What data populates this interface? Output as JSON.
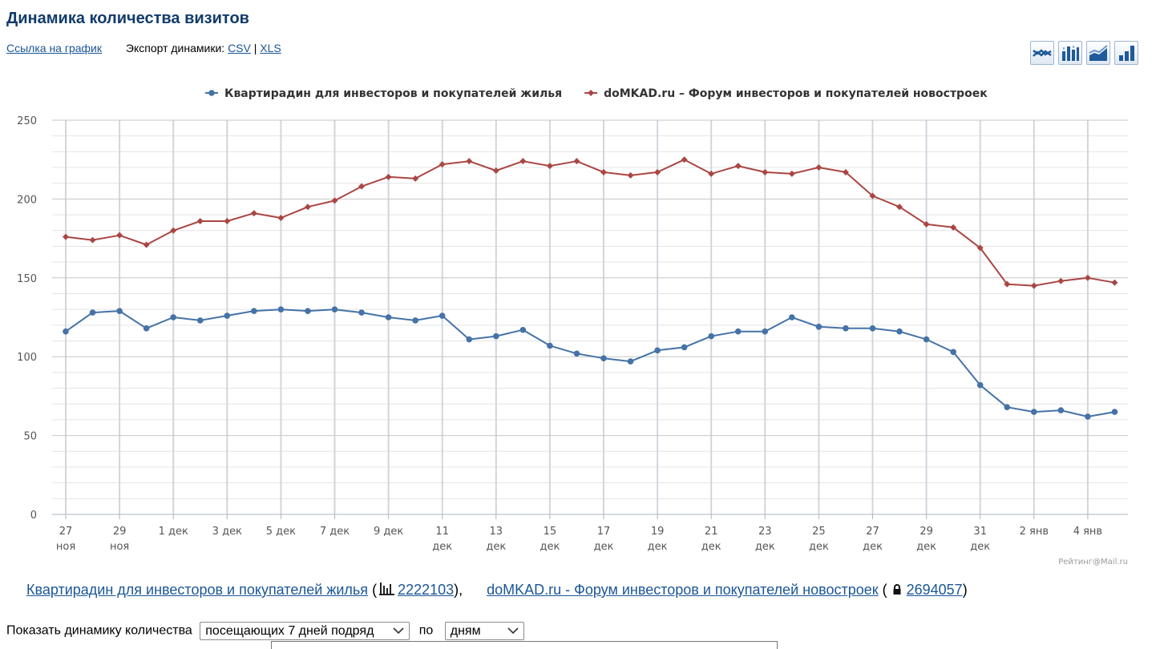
{
  "page": {
    "title": "Динамика количества визитов",
    "chart_link": "Ссылка на график",
    "export_label": "Экспорт динамики:",
    "export_csv": "CSV",
    "export_sep": "|",
    "export_xls": "XLS",
    "chart_type_icons": [
      "line-chart-icon",
      "bar-chart-icon",
      "area-chart-icon",
      "column-chart-icon"
    ]
  },
  "chart_data": {
    "type": "line",
    "title": "",
    "xlabel": "",
    "ylabel": "",
    "ylim": [
      0,
      250
    ],
    "yticks": [
      "0",
      "50",
      "100",
      "150",
      "200",
      "250"
    ],
    "grid": true,
    "legend_position": "top-center",
    "x": [
      "27 ноя",
      "28 ноя",
      "29 ноя",
      "30 ноя",
      "1 дек",
      "2 дек",
      "3 дек",
      "4 дек",
      "5 дек",
      "6 дек",
      "7 дек",
      "8 дек",
      "9 дек",
      "10 дек",
      "11 дек",
      "12 дек",
      "13 дек",
      "14 дек",
      "15 дек",
      "16 дек",
      "17 дек",
      "18 дек",
      "19 дек",
      "20 дек",
      "21 дек",
      "22 дек",
      "23 дек",
      "24 дек",
      "25 дек",
      "26 дек",
      "27 дек",
      "28 дек",
      "29 дек",
      "30 дек",
      "31 дек",
      "1 янв",
      "2 янв",
      "3 янв",
      "4 янв",
      "5 янв"
    ],
    "tick_labels": [
      {
        "i": 0,
        "l1": "27",
        "l2": "ноя"
      },
      {
        "i": 2,
        "l1": "29",
        "l2": "ноя"
      },
      {
        "i": 4,
        "l1": "1 дек",
        "l2": ""
      },
      {
        "i": 6,
        "l1": "3 дек",
        "l2": ""
      },
      {
        "i": 8,
        "l1": "5 дек",
        "l2": ""
      },
      {
        "i": 10,
        "l1": "7 дек",
        "l2": ""
      },
      {
        "i": 12,
        "l1": "9 дек",
        "l2": ""
      },
      {
        "i": 14,
        "l1": "11",
        "l2": "дек"
      },
      {
        "i": 16,
        "l1": "13",
        "l2": "дек"
      },
      {
        "i": 18,
        "l1": "15",
        "l2": "дек"
      },
      {
        "i": 20,
        "l1": "17",
        "l2": "дек"
      },
      {
        "i": 22,
        "l1": "19",
        "l2": "дек"
      },
      {
        "i": 24,
        "l1": "21",
        "l2": "дек"
      },
      {
        "i": 26,
        "l1": "23",
        "l2": "дек"
      },
      {
        "i": 28,
        "l1": "25",
        "l2": "дек"
      },
      {
        "i": 30,
        "l1": "27",
        "l2": "дек"
      },
      {
        "i": 32,
        "l1": "29",
        "l2": "дек"
      },
      {
        "i": 34,
        "l1": "31",
        "l2": "дек"
      },
      {
        "i": 36,
        "l1": "2 янв",
        "l2": ""
      },
      {
        "i": 38,
        "l1": "4 янв",
        "l2": ""
      }
    ],
    "series": [
      {
        "name": "Квартирадин для инвесторов и покупателей жилья",
        "color": "#4572a7",
        "marker": "circle",
        "values": [
          116,
          128,
          129,
          118,
          125,
          123,
          126,
          129,
          130,
          129,
          130,
          128,
          125,
          123,
          126,
          111,
          113,
          117,
          107,
          102,
          99,
          97,
          104,
          106,
          113,
          116,
          116,
          125,
          119,
          118,
          118,
          116,
          111,
          103,
          82,
          68,
          65,
          66,
          62,
          65
        ]
      },
      {
        "name": "doMKAD.ru – Форум инвесторов и покупателей новостроек",
        "color": "#aa4643",
        "marker": "diamond",
        "values": [
          176,
          174,
          177,
          171,
          180,
          186,
          186,
          191,
          188,
          195,
          199,
          208,
          214,
          213,
          222,
          224,
          218,
          224,
          221,
          224,
          217,
          215,
          217,
          225,
          216,
          221,
          217,
          216,
          220,
          217,
          202,
          195,
          184,
          182,
          169,
          146,
          145,
          148,
          150,
          147
        ]
      }
    ],
    "credits": "Рейтинг@Mail.ru"
  },
  "sites": [
    {
      "name": "Квартирадин для инвесторов и покупателей жилья",
      "icon": "stats-counter-icon",
      "id": "2222103",
      "open": " (",
      "close": "),"
    },
    {
      "name": "doMKAD.ru - Форум инвесторов и покупателей новостроек",
      "icon": "lock-icon",
      "id": "2694057",
      "open": " (",
      "close": ")"
    }
  ],
  "controls": {
    "show_label": "Показать динамику количества",
    "metric_value": "посещающих 7 дней подряд",
    "by_label": "по",
    "period_value": "дням"
  }
}
